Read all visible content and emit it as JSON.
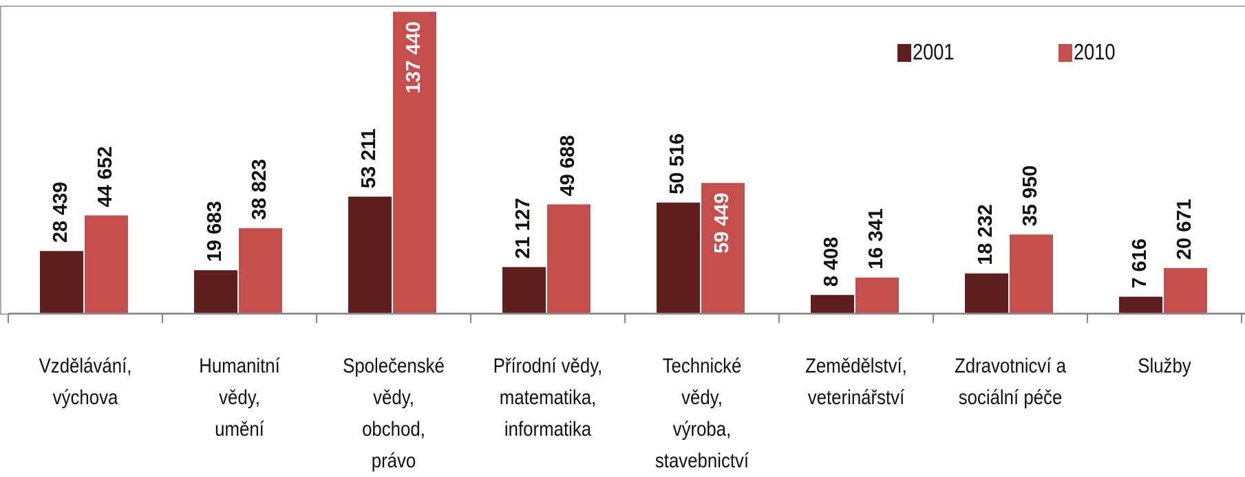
{
  "chart_data": {
    "type": "bar",
    "categories": [
      "Vzdělávání,\nvýchova",
      "Humanitní\nvědy,\numění",
      "Společenské\nvědy,\nobchod,\nprávo",
      "Přírodní vědy,\nmatematika,\ninformatika",
      "Technické\nvědy,\nvýroba,\nstavebnictví",
      "Zemědělství,\nveterinářství",
      "Zdravotnicví a\nsociální péče",
      "Služby"
    ],
    "series": [
      {
        "name": "2001",
        "color": "#5e1f1e",
        "values": [
          28439,
          19683,
          53211,
          21127,
          50516,
          8408,
          18232,
          7616
        ],
        "value_labels": [
          "28 439",
          "19 683",
          "53 211",
          "21 127",
          "50 516",
          "8 408",
          "18 232",
          "7 616"
        ]
      },
      {
        "name": "2010",
        "color": "#c64f4d",
        "values": [
          44652,
          38823,
          137440,
          49688,
          59449,
          16341,
          35950,
          20671
        ],
        "value_labels": [
          "44 652",
          "38 823",
          "137 440",
          "49 688",
          "59 449",
          "16 341",
          "35 950",
          "20 671"
        ]
      }
    ],
    "ylim": [
      0,
      140000
    ],
    "legend": "top-right"
  }
}
